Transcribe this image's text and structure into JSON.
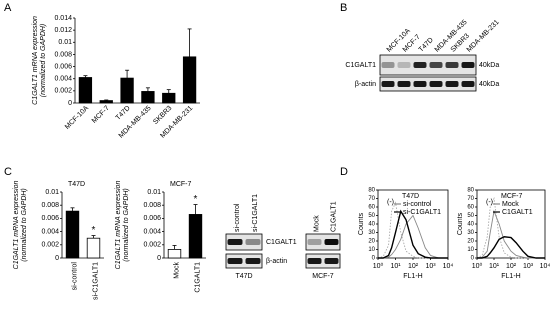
{
  "panel_labels": [
    "A",
    "B",
    "C",
    "D"
  ],
  "chart_data": [
    {
      "type": "bar",
      "ylabel": [
        "C1GALT1 mRNA expression",
        "(normalized to GAPDH)"
      ],
      "categories": [
        "MCF-10A",
        "MCF-7",
        "T47D",
        "MDA-MB-435",
        "SKBR3",
        "MDA-MB-231"
      ],
      "values": [
        0.0042,
        0.0004,
        0.0041,
        0.0019,
        0.0016,
        0.0076
      ],
      "errors": [
        0.0003,
        0.0001,
        0.0013,
        0.0006,
        0.0006,
        0.0046
      ],
      "color": "#000000",
      "ylim": [
        0,
        0.014
      ],
      "yticks": [
        0,
        0.002,
        0.004,
        0.006,
        0.008,
        0.01,
        0.012,
        0.014
      ]
    },
    {
      "type": "bar",
      "subtitle": "T47D",
      "ylabel": [
        "C1GALT1 mRNA expression",
        "(normalized to GAPDH)"
      ],
      "categories": [
        "si-control",
        "si-C1GALT1"
      ],
      "values": [
        0.0071,
        0.003
      ],
      "errors": [
        0.0005,
        0.0004
      ],
      "colors": [
        "#000000",
        "#ffffff"
      ],
      "significance": [
        null,
        "*"
      ],
      "ylim": [
        0,
        0.01
      ],
      "yticks": [
        0,
        0.002,
        0.004,
        0.006,
        0.008,
        0.01
      ]
    },
    {
      "type": "bar",
      "subtitle": "MCF-7",
      "ylabel": [
        "C1GALT1 mRNA expression",
        "(normalized to GAPDH)"
      ],
      "categories": [
        "Mock",
        "C1GALT1"
      ],
      "values": [
        0.0013,
        0.0066
      ],
      "errors": [
        0.0006,
        0.0015
      ],
      "colors": [
        "#ffffff",
        "#000000"
      ],
      "significance": [
        null,
        "*"
      ],
      "ylim": [
        0,
        0.01
      ],
      "yticks": [
        0,
        0.002,
        0.004,
        0.006,
        0.008,
        0.01
      ]
    },
    {
      "type": "line",
      "subtitle": "T47D",
      "annotation": "(-)",
      "xlabel": "FL1-H",
      "ylabel": "Counts",
      "xlog": true,
      "x": [
        1,
        2,
        4,
        6,
        10,
        20,
        40,
        100,
        200,
        500,
        1000,
        3000,
        10000
      ],
      "series": [
        {
          "color": "#aaaaaa",
          "dash": "1.5 1.5",
          "values": [
            0,
            2,
            15,
            55,
            65,
            30,
            8,
            2,
            0,
            0,
            0,
            0,
            0
          ]
        },
        {
          "name": "si-control",
          "color": "#888888",
          "values": [
            0,
            0,
            1,
            4,
            10,
            22,
            40,
            50,
            35,
            12,
            3,
            0,
            0
          ]
        },
        {
          "name": "si-C1GALT1",
          "color": "#000000",
          "values": [
            0,
            0,
            3,
            12,
            30,
            55,
            45,
            15,
            5,
            1,
            0,
            0,
            0
          ]
        }
      ],
      "xlim": [
        1,
        10000
      ],
      "xticks": [
        {
          "value": 1,
          "label": "10⁰"
        },
        {
          "value": 10,
          "label": "10¹"
        },
        {
          "value": 100,
          "label": "10²"
        },
        {
          "value": 1000,
          "label": "10³"
        },
        {
          "value": 10000,
          "label": "10⁴"
        }
      ],
      "ylim": [
        0,
        80
      ],
      "yticks": [
        0,
        10,
        20,
        30,
        40,
        50,
        60,
        70,
        80
      ]
    },
    {
      "type": "line",
      "subtitle": "MCF-7",
      "annotation": "(-)",
      "xlabel": "FL1-H",
      "ylabel": "Counts",
      "xlog": true,
      "x": [
        1,
        2,
        4,
        6,
        10,
        20,
        40,
        100,
        200,
        500,
        1000,
        3000,
        10000
      ],
      "series": [
        {
          "color": "#aaaaaa",
          "dash": "1.5 1.5",
          "values": [
            0,
            3,
            25,
            60,
            70,
            25,
            6,
            1,
            0,
            0,
            0,
            0,
            0
          ]
        },
        {
          "name": "Mock",
          "color": "#888888",
          "values": [
            0,
            1,
            8,
            30,
            55,
            40,
            20,
            8,
            3,
            1,
            0,
            0,
            0
          ]
        },
        {
          "name": "C1GALT1",
          "color": "#000000",
          "values": [
            0,
            0,
            2,
            6,
            12,
            22,
            25,
            24,
            18,
            8,
            2,
            0,
            0
          ]
        }
      ],
      "xlim": [
        1,
        10000
      ],
      "xticks": [
        {
          "value": 1,
          "label": "10⁰"
        },
        {
          "value": 10,
          "label": "10¹"
        },
        {
          "value": 100,
          "label": "10²"
        },
        {
          "value": 1000,
          "label": "10³"
        },
        {
          "value": 10000,
          "label": "10⁴"
        }
      ],
      "ylim": [
        0,
        80
      ],
      "yticks": [
        0,
        10,
        20,
        30,
        40,
        50,
        60,
        70,
        80
      ]
    }
  ],
  "blots": [
    {
      "lanes": [
        "MCF-10A",
        "MCF-7",
        "T47D",
        "MDA-MB-435",
        "SKBR3",
        "MDA-MB-231"
      ],
      "rows": [
        "C1GALT1",
        "β-actin"
      ],
      "sizes": [
        "40kDa",
        "40kDa"
      ]
    },
    {
      "lanes": [
        "si-control",
        "si-C1GALT1"
      ],
      "rows": [
        "C1GALT1",
        "β-actin"
      ],
      "caption": "T47D"
    },
    {
      "lanes": [
        "Mock",
        "C1GALT1"
      ],
      "caption": "MCF-7"
    }
  ]
}
